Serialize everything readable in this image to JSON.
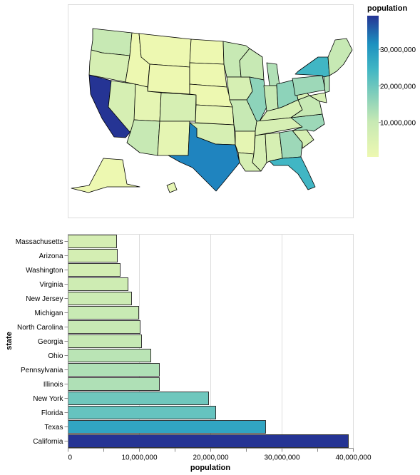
{
  "chart_data": [
    {
      "type": "choropleth-map",
      "region": "United States",
      "color_field": "population",
      "legend": {
        "title": "population",
        "tick_labels": [
          "10,000,000",
          "20,000,000",
          "30,000,000"
        ],
        "tick_values": [
          10000000,
          20000000,
          30000000
        ],
        "domain": [
          577000,
          39200000
        ],
        "scheme": "yellowgreenblue",
        "placement": "right"
      }
    },
    {
      "type": "bar",
      "orientation": "horizontal",
      "ylabel": "state",
      "xlabel": "population",
      "xlim": [
        0,
        40000000
      ],
      "x_tick_labels": [
        "0",
        "10,000,000",
        "20,000,000",
        "30,000,000",
        "40,000,000"
      ],
      "x_tick_values": [
        0,
        10000000,
        20000000,
        30000000,
        40000000
      ],
      "grid": true,
      "categories": [
        "Massachusetts",
        "Arizona",
        "Washington",
        "Virginia",
        "New Jersey",
        "Michigan",
        "North Carolina",
        "Georgia",
        "Ohio",
        "Pennsylvania",
        "Illinois",
        "New York",
        "Florida",
        "Texas",
        "California"
      ],
      "values": [
        6800000,
        6900000,
        7300000,
        8400000,
        8900000,
        9900000,
        10100000,
        10300000,
        11600000,
        12800000,
        12800000,
        19700000,
        20700000,
        27700000,
        39300000
      ]
    }
  ],
  "colors": {
    "scheme": [
      "#ffffd9",
      "#edf8b1",
      "#c7e9b4",
      "#7fcdbb",
      "#41b6c4",
      "#1d91c0",
      "#225ea8",
      "#253494",
      "#081d58"
    ],
    "panel_border": "#dddddd",
    "axis": "#888888",
    "grid": "#dddddd",
    "state_stroke": "#000000"
  }
}
